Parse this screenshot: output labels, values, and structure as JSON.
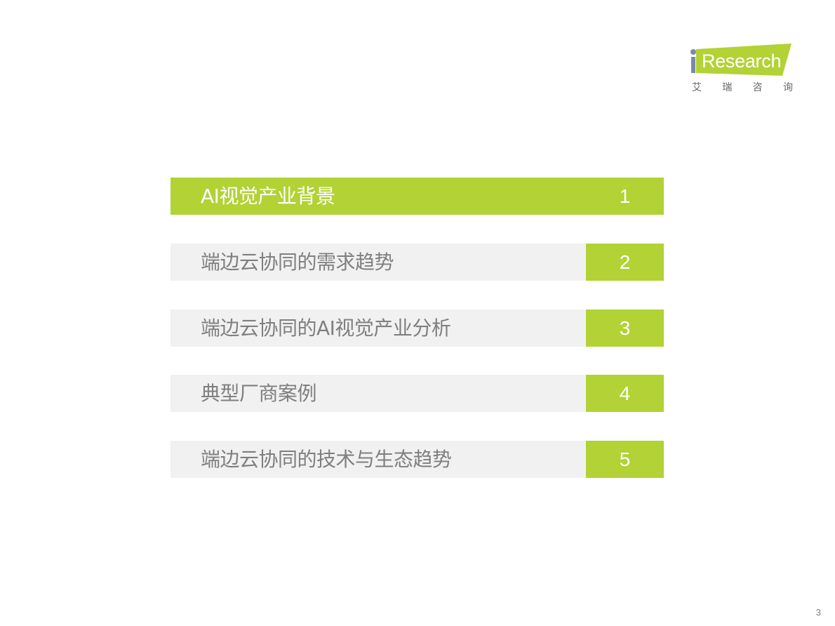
{
  "logo": {
    "brand": "iResearch",
    "brand_text": "Research",
    "chinese": [
      "艾",
      "瑞",
      "咨",
      "询"
    ]
  },
  "toc": [
    {
      "label": "AI视觉产业背景",
      "number": "1",
      "active": true
    },
    {
      "label": "端边云协同的需求趋势",
      "number": "2",
      "active": false
    },
    {
      "label": "端边云协同的AI视觉产业分析",
      "number": "3",
      "active": false
    },
    {
      "label": "典型厂商案例",
      "number": "4",
      "active": false
    },
    {
      "label": "端边云协同的技术与生态趋势",
      "number": "5",
      "active": false
    }
  ],
  "colors": {
    "accent": "#b2d235",
    "row_bg": "#f1f1f1",
    "text": "#7f7f7f"
  },
  "page_number": "3"
}
